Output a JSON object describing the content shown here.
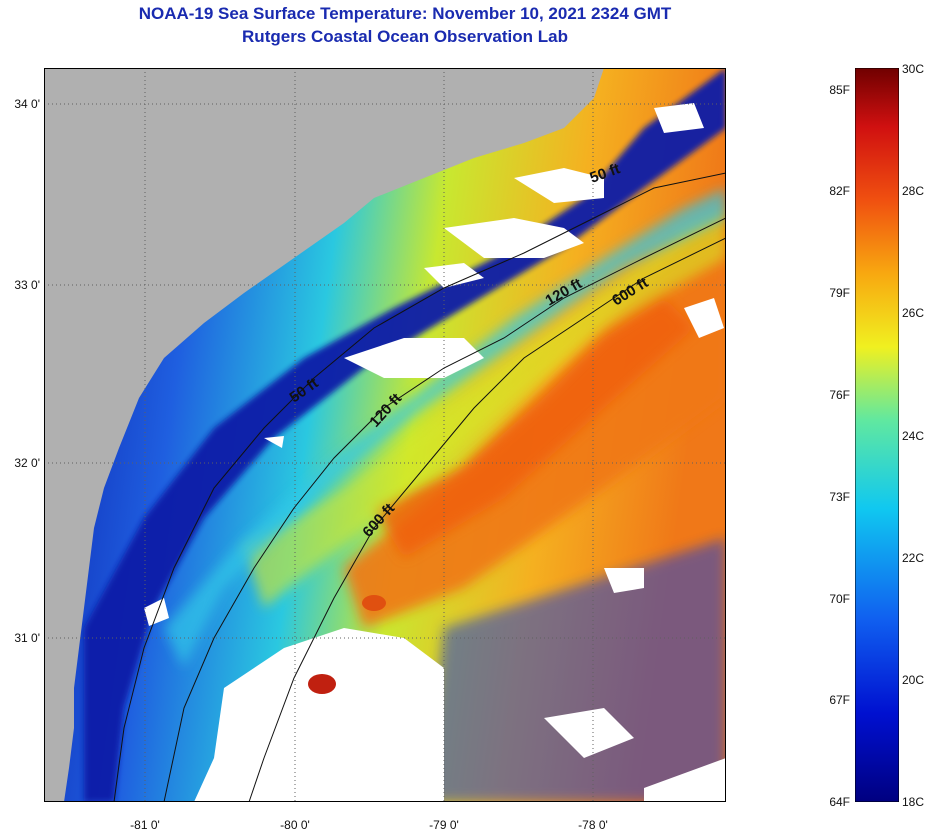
{
  "title": {
    "line1": "NOAA-19 Sea Surface Temperature:  November 10, 2021 2324 GMT",
    "line2": "Rutgers Coastal Ocean Observation Lab"
  },
  "axes": {
    "lat_labels": [
      "34 0'",
      "33 0'",
      "32 0'",
      "31 0'"
    ],
    "lon_labels": [
      "-81 0'",
      "-80 0'",
      "-79 0'",
      "-78 0'"
    ]
  },
  "contours": {
    "c50_a": "50 ft",
    "c50_b": "50 ft",
    "c120_a": "120 ft",
    "c120_b": "120 ft",
    "c600_a": "600 ft",
    "c600_b": "600 ft"
  },
  "colorbar": {
    "fahrenheit": [
      "85F",
      "82F",
      "79F",
      "76F",
      "73F",
      "70F",
      "67F",
      "64F"
    ],
    "celsius": [
      "30C",
      "28C",
      "26C",
      "24C",
      "22C",
      "20C",
      "18C"
    ],
    "range_c": [
      18,
      30
    ]
  },
  "colors": {
    "land": "#b0b0b0",
    "title": "#1a2bb0",
    "cloud": "#ffffff",
    "cold": "#0a1aa8",
    "warm": "#f07818"
  }
}
